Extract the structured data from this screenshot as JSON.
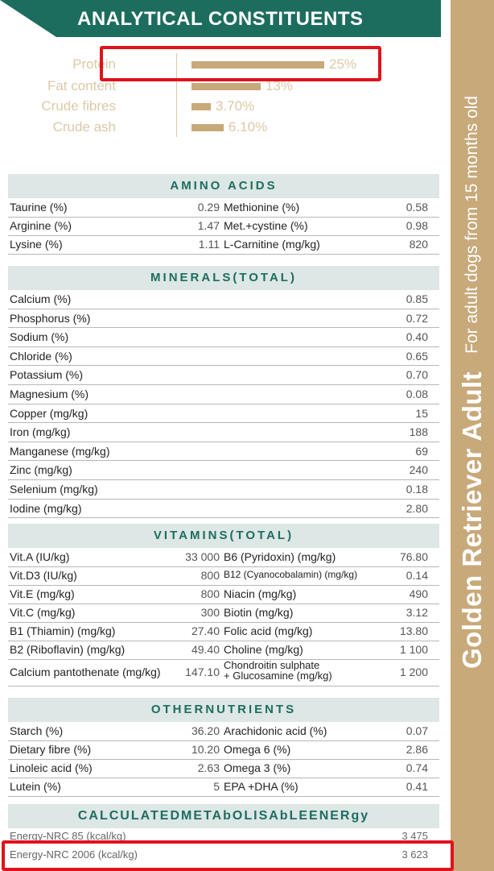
{
  "header": {
    "title": "ANALYTICAL CONSTITUENTS"
  },
  "side_banner": {
    "name": "Golden Retriever Adult",
    "subtitle": "For adult dogs from 15 months old"
  },
  "analytical": [
    {
      "label": "Protein",
      "value": "25%",
      "level": 0.25
    },
    {
      "label": "Fat content",
      "value": "13%",
      "level": 0.13
    },
    {
      "label": "Crude fibres",
      "value": "3.70%",
      "level": 0.037
    },
    {
      "label": "Crude ash",
      "value": "6.10%",
      "level": 0.061
    }
  ],
  "amino_acids": {
    "title": "AMINO ACIDS",
    "rows": [
      {
        "l1": "Taurine (%)",
        "v1": "0.29",
        "l2": "Methionine (%)",
        "v2": "0.58"
      },
      {
        "l1": "Arginine (%)",
        "v1": "1.47",
        "l2": "Met.+cystine (%)",
        "v2": "0.98"
      },
      {
        "l1": "Lysine (%)",
        "v1": "1.11",
        "l2": "L-Carnitine (mg/kg)",
        "v2": "820"
      }
    ]
  },
  "minerals": {
    "title": "MINERALS(TOTAL)",
    "rows": [
      {
        "label": "Calcium (%)",
        "value": "0.85"
      },
      {
        "label": "Phosphorus (%)",
        "value": "0.72"
      },
      {
        "label": "Sodium (%)",
        "value": "0.40"
      },
      {
        "label": "Chloride (%)",
        "value": "0.65"
      },
      {
        "label": "Potassium (%)",
        "value": "0.70"
      },
      {
        "label": "Magnesium (%)",
        "value": "0.08"
      },
      {
        "label": "Copper (mg/kg)",
        "value": "15"
      },
      {
        "label": "Iron (mg/kg)",
        "value": "188"
      },
      {
        "label": "Manganese (mg/kg)",
        "value": "69"
      },
      {
        "label": "Zinc (mg/kg)",
        "value": "240"
      },
      {
        "label": "Selenium (mg/kg)",
        "value": "0.18"
      },
      {
        "label": "Iodine (mg/kg)",
        "value": "2.80"
      }
    ]
  },
  "vitamins": {
    "title": "VITAMINS(TOTAL)",
    "rows": [
      {
        "l1": "Vit.A (IU/kg)",
        "v1": "33 000",
        "l2": "B6 (Pyridoxin) (mg/kg)",
        "v2": "76.80"
      },
      {
        "l1": "Vit.D3 (IU/kg)",
        "v1": "800",
        "l2": "B12 (Cyanocobalamin) (mg/kg)",
        "v2": "0.14"
      },
      {
        "l1": "Vit.E (mg/kg)",
        "v1": "800",
        "l2": "Niacin (mg/kg)",
        "v2": "490"
      },
      {
        "l1": "Vit.C (mg/kg)",
        "v1": "300",
        "l2": "Biotin (mg/kg)",
        "v2": "3.12"
      },
      {
        "l1": "B1 (Thiamin) (mg/kg)",
        "v1": "27.40",
        "l2": "Folic acid (mg/kg)",
        "v2": "13.80"
      },
      {
        "l1": "B2 (Riboflavin) (mg/kg)",
        "v1": "49.40",
        "l2": "Choline (mg/kg)",
        "v2": "1 100"
      },
      {
        "l1": "Calcium pantothenate (mg/kg)",
        "v1": "147.10",
        "l2a": "Chondroitin sulphate",
        "l2b": "+ Glucosamine (mg/kg)",
        "v2": "1 200"
      }
    ]
  },
  "other_nutrients": {
    "title": "OTHERNUTRIENTS",
    "rows": [
      {
        "l1": "Starch (%)",
        "v1": "36.20",
        "l2": "Arachidonic acid (%)",
        "v2": "0.07"
      },
      {
        "l1": "Dietary fibre (%)",
        "v1": "10.20",
        "l2": "Omega 6 (%)",
        "v2": "2.86"
      },
      {
        "l1": "Linoleic acid (%)",
        "v1": "2.63",
        "l2": "Omega 3 (%)",
        "v2": "0.74"
      },
      {
        "l1": "Lutein (%)",
        "v1": "5",
        "l2": "EPA +DHA (%)",
        "v2": "0.41"
      }
    ]
  },
  "energy": {
    "title": "CALCULATEDMETAbOLISAbLEENERgy",
    "rows": [
      {
        "label": "Energy-NRC 85 (kcal/kg)",
        "value": "3 475"
      },
      {
        "label": "Energy-NRC 2006 (kcal/kg)",
        "value": "3 623"
      }
    ]
  },
  "colors": {
    "brand_green": "#1d6d5f",
    "tan": "#c8a97a",
    "highlight_red": "#e0121b",
    "header_bg": "#dde7e5"
  }
}
